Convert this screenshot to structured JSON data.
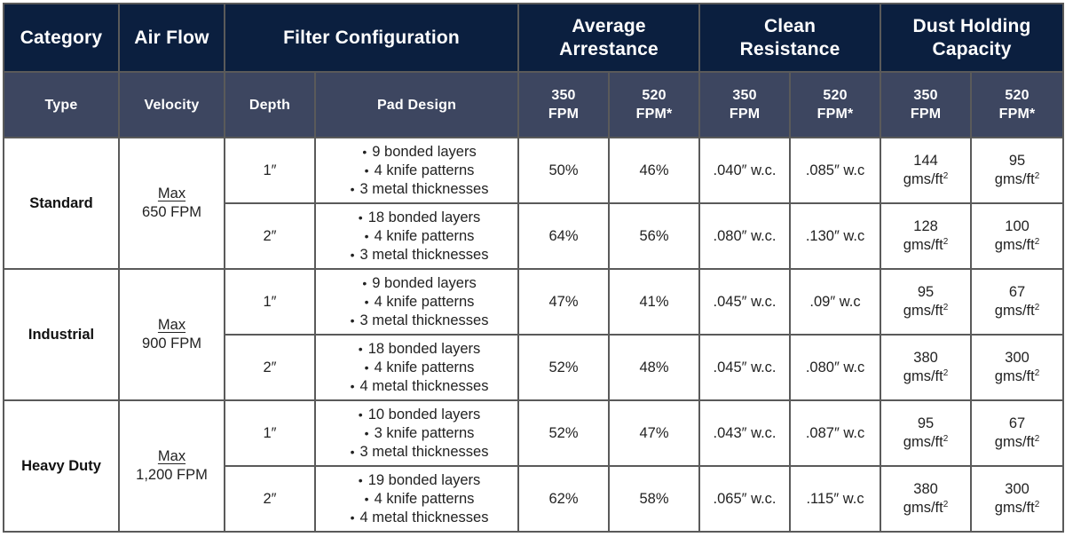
{
  "header": {
    "groups": [
      {
        "label": "Category"
      },
      {
        "label": "Air Flow"
      },
      {
        "label": "Filter Configuration"
      },
      {
        "label_line1": "Average",
        "label_line2": "Arrestance"
      },
      {
        "label_line1": "Clean",
        "label_line2": "Resistance"
      },
      {
        "label_line1": "Dust Holding",
        "label_line2": "Capacity"
      }
    ],
    "sub": {
      "type": "Type",
      "velocity": "Velocity",
      "depth": "Depth",
      "pad_design": "Pad Design",
      "fpm350_l1": "350",
      "fpm350_l2": "FPM",
      "fpm520_l1": "520",
      "fpm520_l2": "FPM*"
    }
  },
  "rows": [
    {
      "category": "Standard",
      "velocity_top": "Max",
      "velocity_bottom": "650 FPM",
      "configs": [
        {
          "depth": "1″",
          "pad": [
            "9 bonded layers",
            "4 knife patterns",
            "3 metal thicknesses"
          ],
          "arrest_350": "50%",
          "arrest_520": "46%",
          "resist_350": ".040″ w.c.",
          "resist_520": ".085″ w.c",
          "dust_350": "144",
          "dust_520": "95",
          "dust_unit": "gms/ft",
          "dust_sup": "2"
        },
        {
          "depth": "2″",
          "pad": [
            "18 bonded layers",
            "4 knife patterns",
            "3 metal thicknesses"
          ],
          "arrest_350": "64%",
          "arrest_520": "56%",
          "resist_350": ".080″ w.c.",
          "resist_520": ".130″ w.c",
          "dust_350": "128",
          "dust_520": "100",
          "dust_unit": "gms/ft",
          "dust_sup": "2"
        }
      ]
    },
    {
      "category": "Industrial",
      "velocity_top": "Max",
      "velocity_bottom": "900 FPM",
      "configs": [
        {
          "depth": "1″",
          "pad": [
            "9 bonded layers",
            "4 knife patterns",
            "3 metal thicknesses"
          ],
          "arrest_350": "47%",
          "arrest_520": "41%",
          "resist_350": ".045″ w.c.",
          "resist_520": ".09″ w.c",
          "dust_350": "95",
          "dust_520": "67",
          "dust_unit": "gms/ft",
          "dust_sup": "2"
        },
        {
          "depth": "2″",
          "pad": [
            "18 bonded layers",
            "4 knife patterns",
            "4 metal thicknesses"
          ],
          "arrest_350": "52%",
          "arrest_520": "48%",
          "resist_350": ".045″ w.c.",
          "resist_520": ".080″ w.c",
          "dust_350": "380",
          "dust_520": "300",
          "dust_unit": "gms/ft",
          "dust_sup": "2"
        }
      ]
    },
    {
      "category": "Heavy Duty",
      "velocity_top": "Max",
      "velocity_bottom": "1,200 FPM",
      "configs": [
        {
          "depth": "1″",
          "pad": [
            "10 bonded layers",
            "3 knife patterns",
            "3 metal thicknesses"
          ],
          "arrest_350": "52%",
          "arrest_520": "47%",
          "resist_350": ".043″ w.c.",
          "resist_520": ".087″ w.c",
          "dust_350": "95",
          "dust_520": "67",
          "dust_unit": "gms/ft",
          "dust_sup": "2"
        },
        {
          "depth": "2″",
          "pad": [
            "19 bonded layers",
            "4 knife patterns",
            "4 metal thicknesses"
          ],
          "arrest_350": "62%",
          "arrest_520": "58%",
          "resist_350": ".065″ w.c.",
          "resist_520": ".115″ w.c",
          "dust_350": "380",
          "dust_520": "300",
          "dust_unit": "gms/ft",
          "dust_sup": "2"
        }
      ]
    }
  ],
  "colors": {
    "header_primary": "#0b1f3f",
    "header_secondary": "#3d4660",
    "border": "#5a5a5a",
    "text": "#222222"
  }
}
